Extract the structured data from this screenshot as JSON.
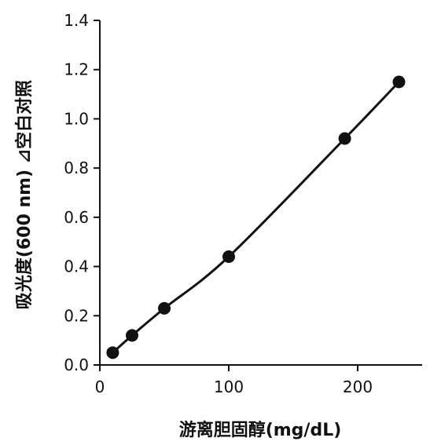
{
  "chart_data": {
    "type": "scatter",
    "title": "",
    "xlabel": "游离胆固醇(mg/dL)",
    "ylabel": "吸光度(600 nm) ⊿空白对照",
    "xlim": [
      0,
      250
    ],
    "ylim": [
      0,
      1.4
    ],
    "xticks": [
      "0",
      "100",
      "200"
    ],
    "yticks": [
      "0.0",
      "0.2",
      "0.4",
      "0.6",
      "0.8",
      "1.0",
      "1.2",
      "1.4"
    ],
    "grid": false,
    "legend": "none",
    "series": [
      {
        "points": [
          {
            "x": 10,
            "y": 0.05
          },
          {
            "x": 25,
            "y": 0.12
          },
          {
            "x": 50,
            "y": 0.23
          },
          {
            "x": 100,
            "y": 0.44
          },
          {
            "x": 190,
            "y": 0.92
          },
          {
            "x": 232,
            "y": 1.15
          }
        ],
        "fit_line": true
      }
    ],
    "colors": {
      "marker": "#111111",
      "line": "#111111",
      "axis": "#111111"
    }
  }
}
